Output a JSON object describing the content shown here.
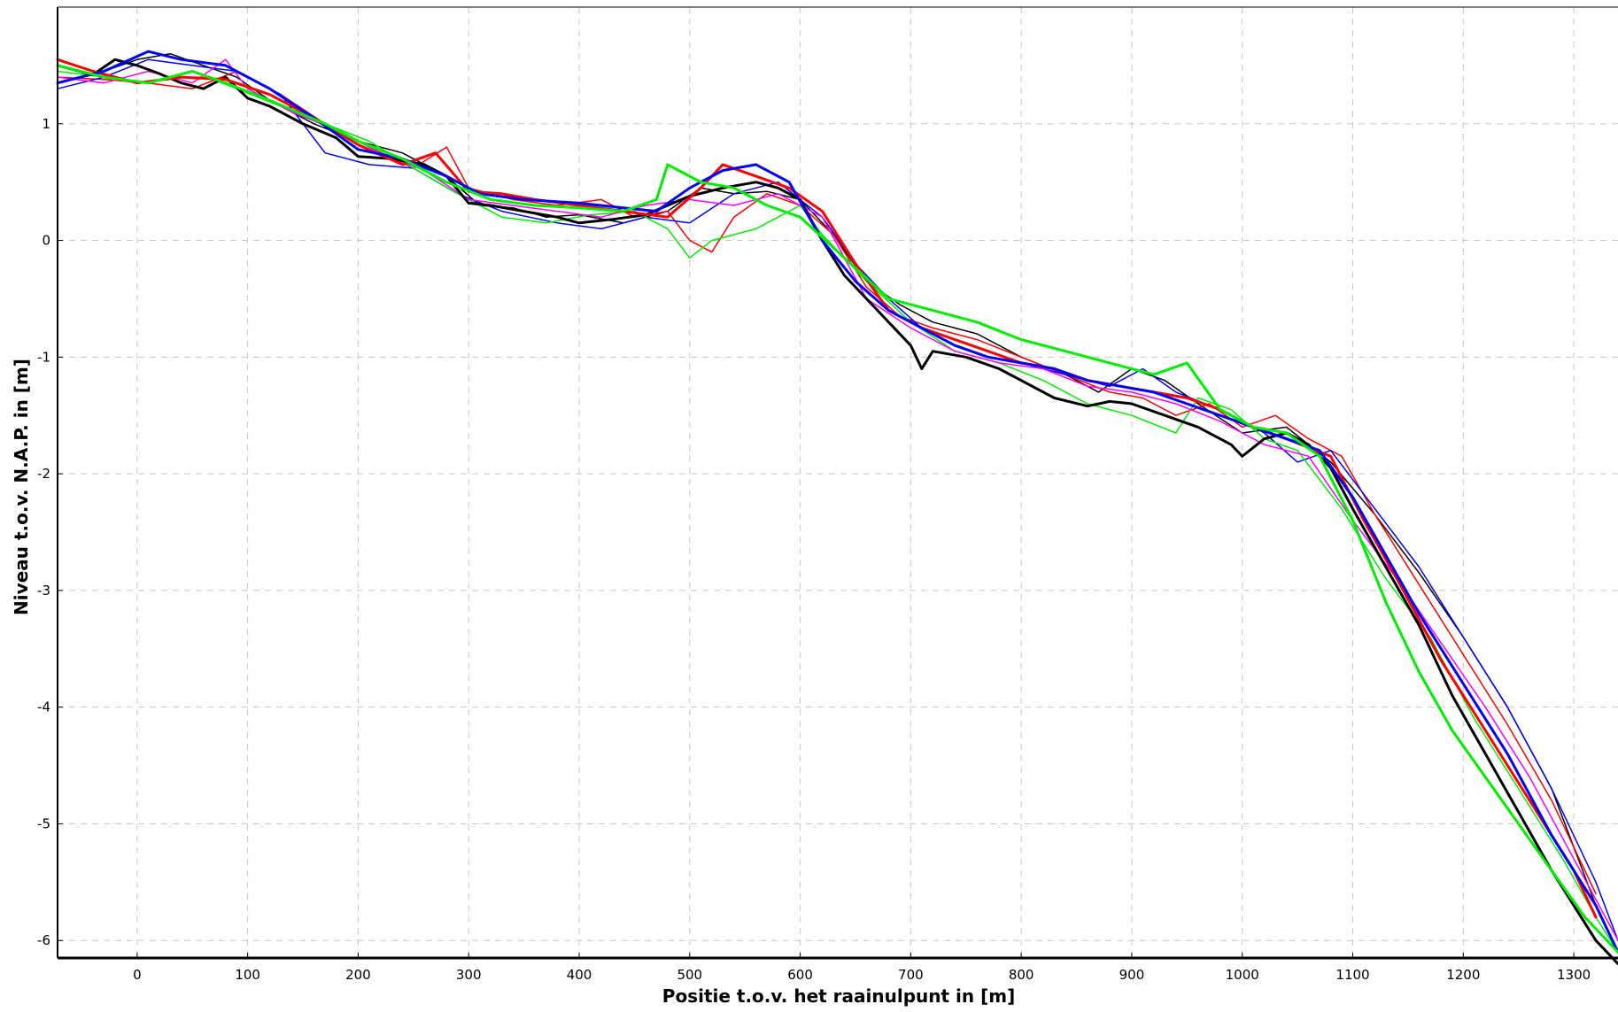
{
  "chart_data": {
    "type": "line",
    "title": "",
    "xlabel": "Positie t.o.v. het raainulpunt in [m]",
    "ylabel": "Niveau t.o.v. N.A.P. in [m]",
    "xlim": [
      -72,
      1340
    ],
    "ylim": [
      -6.15,
      2.0
    ],
    "grid": true,
    "legend": "none",
    "x_ticks": [
      0,
      100,
      200,
      300,
      400,
      500,
      600,
      700,
      800,
      900,
      1000,
      1100,
      1200,
      1300
    ],
    "y_ticks": [
      1,
      0,
      -1,
      -2,
      -3,
      -4,
      -5,
      -6
    ],
    "x_tick_labels": [
      "0",
      "100",
      "200",
      "300",
      "400",
      "500",
      "600",
      "700",
      "800",
      "900",
      "1000",
      "1100",
      "1200",
      "1300"
    ],
    "y_tick_labels": [
      "1",
      "0",
      "-1",
      "-2",
      "-3",
      "-4",
      "-5",
      "-6"
    ],
    "series": [
      {
        "color": "#000000",
        "width": 3,
        "x": [
          -72,
          -40,
          -20,
          0,
          20,
          40,
          60,
          80,
          100,
          120,
          150,
          180,
          200,
          230,
          260,
          280,
          300,
          320,
          350,
          380,
          400,
          430,
          460,
          480,
          500,
          530,
          560,
          580,
          600,
          620,
          640,
          660,
          680,
          700,
          710,
          720,
          750,
          780,
          800,
          830,
          860,
          880,
          900,
          930,
          960,
          990,
          1000,
          1020,
          1040,
          1060,
          1080,
          1100,
          1130,
          1160,
          1190,
          1220,
          1250,
          1280,
          1300,
          1320,
          1340
        ],
        "y": [
          1.5,
          1.42,
          1.55,
          1.5,
          1.43,
          1.35,
          1.3,
          1.4,
          1.22,
          1.15,
          1.0,
          0.88,
          0.72,
          0.7,
          0.65,
          0.55,
          0.32,
          0.3,
          0.25,
          0.2,
          0.15,
          0.18,
          0.22,
          0.3,
          0.38,
          0.45,
          0.5,
          0.45,
          0.35,
          0.0,
          -0.3,
          -0.5,
          -0.7,
          -0.9,
          -1.1,
          -0.95,
          -1.0,
          -1.1,
          -1.2,
          -1.35,
          -1.42,
          -1.38,
          -1.4,
          -1.5,
          -1.6,
          -1.75,
          -1.85,
          -1.7,
          -1.65,
          -1.75,
          -1.95,
          -2.3,
          -2.8,
          -3.3,
          -3.9,
          -4.4,
          -4.9,
          -5.4,
          -5.7,
          -6.0,
          -6.2
        ]
      },
      {
        "color": "#000000",
        "width": 1.5,
        "x": [
          -72,
          -30,
          0,
          30,
          60,
          90,
          120,
          160,
          200,
          240,
          280,
          310,
          340,
          370,
          400,
          440,
          480,
          510,
          540,
          570,
          600,
          630,
          660,
          690,
          720,
          760,
          800,
          840,
          870,
          900,
          930,
          960,
          1000,
          1040,
          1080,
          1120,
          1160,
          1200,
          1240,
          1280,
          1320,
          1340
        ],
        "y": [
          1.35,
          1.45,
          1.55,
          1.6,
          1.5,
          1.4,
          1.2,
          1.0,
          0.85,
          0.75,
          0.55,
          0.3,
          0.28,
          0.2,
          0.22,
          0.15,
          0.25,
          0.45,
          0.4,
          0.42,
          0.35,
          0.05,
          -0.35,
          -0.55,
          -0.7,
          -0.8,
          -1.0,
          -1.15,
          -1.3,
          -1.1,
          -1.2,
          -1.4,
          -1.65,
          -1.6,
          -1.9,
          -2.35,
          -2.85,
          -3.4,
          -4.0,
          -4.7,
          -5.7,
          -6.1
        ]
      },
      {
        "color": "#ff0000",
        "width": 3,
        "x": [
          -72,
          -40,
          0,
          40,
          80,
          120,
          160,
          200,
          240,
          270,
          300,
          330,
          360,
          400,
          440,
          480,
          510,
          530,
          560,
          590,
          620,
          650,
          680,
          710,
          740,
          770,
          800,
          830,
          860,
          890,
          920,
          950,
          980,
          1010,
          1040,
          1080,
          1110,
          1140,
          1180,
          1220,
          1260,
          1300,
          1320
        ],
        "y": [
          1.55,
          1.45,
          1.35,
          1.4,
          1.38,
          1.25,
          1.05,
          0.82,
          0.65,
          0.75,
          0.42,
          0.4,
          0.35,
          0.3,
          0.25,
          0.2,
          0.45,
          0.65,
          0.55,
          0.45,
          0.25,
          -0.2,
          -0.6,
          -0.75,
          -0.85,
          -0.95,
          -1.05,
          -1.1,
          -1.2,
          -1.25,
          -1.3,
          -1.35,
          -1.45,
          -1.6,
          -1.7,
          -1.85,
          -2.4,
          -2.9,
          -3.6,
          -4.2,
          -4.8,
          -5.4,
          -5.8
        ]
      },
      {
        "color": "#ff0000",
        "width": 1.5,
        "x": [
          -72,
          -30,
          10,
          50,
          90,
          130,
          170,
          210,
          250,
          280,
          300,
          340,
          380,
          420,
          450,
          480,
          500,
          520,
          540,
          570,
          600,
          630,
          660,
          690,
          720,
          760,
          800,
          840,
          880,
          910,
          940,
          970,
          1000,
          1030,
          1060,
          1090,
          1120,
          1160,
          1200,
          1240,
          1280,
          1320
        ],
        "y": [
          1.4,
          1.38,
          1.35,
          1.3,
          1.45,
          1.25,
          1.0,
          0.8,
          0.62,
          0.8,
          0.45,
          0.35,
          0.3,
          0.35,
          0.2,
          0.25,
          0.0,
          -0.1,
          0.2,
          0.4,
          0.3,
          0.05,
          -0.4,
          -0.65,
          -0.75,
          -0.85,
          -1.0,
          -1.15,
          -1.3,
          -1.35,
          -1.5,
          -1.4,
          -1.6,
          -1.5,
          -1.7,
          -1.85,
          -2.35,
          -2.95,
          -3.55,
          -4.15,
          -4.8,
          -5.6
        ]
      },
      {
        "color": "#0000ff",
        "width": 3,
        "x": [
          -72,
          -30,
          10,
          40,
          80,
          120,
          160,
          200,
          240,
          280,
          310,
          350,
          400,
          440,
          470,
          500,
          530,
          560,
          590,
          620,
          650,
          680,
          710,
          740,
          770,
          800,
          830,
          860,
          890,
          920,
          950,
          980,
          1010,
          1040,
          1070,
          1100,
          1130,
          1160,
          1200,
          1240,
          1280,
          1320,
          1340
        ],
        "y": [
          1.35,
          1.45,
          1.62,
          1.55,
          1.5,
          1.3,
          1.05,
          0.78,
          0.7,
          0.55,
          0.4,
          0.35,
          0.32,
          0.28,
          0.25,
          0.45,
          0.6,
          0.65,
          0.5,
          0.0,
          -0.35,
          -0.6,
          -0.75,
          -0.9,
          -1.0,
          -1.05,
          -1.1,
          -1.2,
          -1.25,
          -1.3,
          -1.4,
          -1.5,
          -1.6,
          -1.7,
          -1.8,
          -2.2,
          -2.7,
          -3.2,
          -3.8,
          -4.4,
          -5.1,
          -5.7,
          -6.1
        ]
      },
      {
        "color": "#0000ff",
        "width": 1.5,
        "x": [
          -72,
          -30,
          10,
          50,
          90,
          130,
          170,
          210,
          250,
          290,
          330,
          380,
          420,
          460,
          500,
          540,
          580,
          620,
          650,
          680,
          710,
          740,
          770,
          800,
          840,
          880,
          910,
          940,
          980,
          1020,
          1050,
          1080,
          1120,
          1160,
          1200,
          1240,
          1280,
          1320,
          1340
        ],
        "y": [
          1.3,
          1.4,
          1.55,
          1.5,
          1.45,
          1.25,
          0.75,
          0.65,
          0.62,
          0.4,
          0.25,
          0.15,
          0.1,
          0.2,
          0.15,
          0.4,
          0.5,
          0.2,
          -0.2,
          -0.5,
          -0.75,
          -0.85,
          -0.95,
          -1.05,
          -1.15,
          -1.25,
          -1.1,
          -1.3,
          -1.45,
          -1.65,
          -1.9,
          -1.8,
          -2.3,
          -2.8,
          -3.4,
          -4.0,
          -4.7,
          -5.5,
          -6.0
        ]
      },
      {
        "color": "#00ee00",
        "width": 3,
        "x": [
          -72,
          -30,
          10,
          50,
          80,
          120,
          170,
          200,
          240,
          280,
          320,
          360,
          400,
          440,
          470,
          480,
          490,
          510,
          540,
          570,
          600,
          640,
          680,
          720,
          760,
          800,
          840,
          880,
          920,
          950,
          980,
          1010,
          1040,
          1070,
          1100,
          1130,
          1160,
          1190,
          1220,
          1250,
          1280,
          1310,
          1340
        ],
        "y": [
          1.5,
          1.4,
          1.35,
          1.45,
          1.35,
          1.2,
          1.0,
          0.85,
          0.7,
          0.5,
          0.35,
          0.3,
          0.28,
          0.25,
          0.35,
          0.65,
          0.6,
          0.5,
          0.45,
          0.3,
          0.2,
          -0.15,
          -0.5,
          -0.6,
          -0.7,
          -0.85,
          -0.95,
          -1.05,
          -1.15,
          -1.05,
          -1.45,
          -1.6,
          -1.65,
          -1.85,
          -2.4,
          -3.1,
          -3.7,
          -4.2,
          -4.6,
          -5.0,
          -5.4,
          -5.8,
          -6.1
        ]
      },
      {
        "color": "#00ee00",
        "width": 1.5,
        "x": [
          -72,
          -30,
          10,
          50,
          90,
          130,
          170,
          210,
          250,
          290,
          330,
          370,
          410,
          450,
          480,
          500,
          520,
          540,
          560,
          580,
          600,
          620,
          660,
          700,
          740,
          780,
          820,
          860,
          900,
          940,
          960,
          990,
          1020,
          1050,
          1090,
          1130,
          1170,
          1210,
          1250,
          1290,
          1320,
          1340
        ],
        "y": [
          1.45,
          1.4,
          1.35,
          1.45,
          1.3,
          1.15,
          1.0,
          0.85,
          0.62,
          0.4,
          0.2,
          0.15,
          0.22,
          0.25,
          0.1,
          -0.15,
          0.0,
          0.05,
          0.1,
          0.2,
          0.3,
          0.05,
          -0.35,
          -0.7,
          -0.95,
          -1.05,
          -1.2,
          -1.4,
          -1.5,
          -1.65,
          -1.35,
          -1.45,
          -1.7,
          -1.8,
          -2.3,
          -2.9,
          -3.4,
          -4.1,
          -4.7,
          -5.3,
          -5.8,
          -6.1
        ]
      },
      {
        "color": "#ff00ff",
        "width": 1.5,
        "x": [
          -72,
          -30,
          10,
          50,
          80,
          100,
          140,
          180,
          220,
          260,
          300,
          340,
          380,
          420,
          460,
          500,
          540,
          580,
          620,
          660,
          700,
          740,
          780,
          820,
          860,
          900,
          940,
          980,
          1020,
          1060,
          1100,
          1140,
          1180,
          1220,
          1260,
          1300,
          1340
        ],
        "y": [
          1.4,
          1.35,
          1.45,
          1.35,
          1.55,
          1.3,
          1.1,
          0.95,
          0.75,
          0.6,
          0.35,
          0.3,
          0.25,
          0.2,
          0.3,
          0.35,
          0.3,
          0.4,
          0.2,
          -0.5,
          -0.75,
          -0.95,
          -1.05,
          -1.1,
          -1.25,
          -1.3,
          -1.4,
          -1.55,
          -1.75,
          -1.85,
          -2.4,
          -2.9,
          -3.45,
          -4.0,
          -4.6,
          -5.3,
          -6.0
        ]
      }
    ]
  }
}
